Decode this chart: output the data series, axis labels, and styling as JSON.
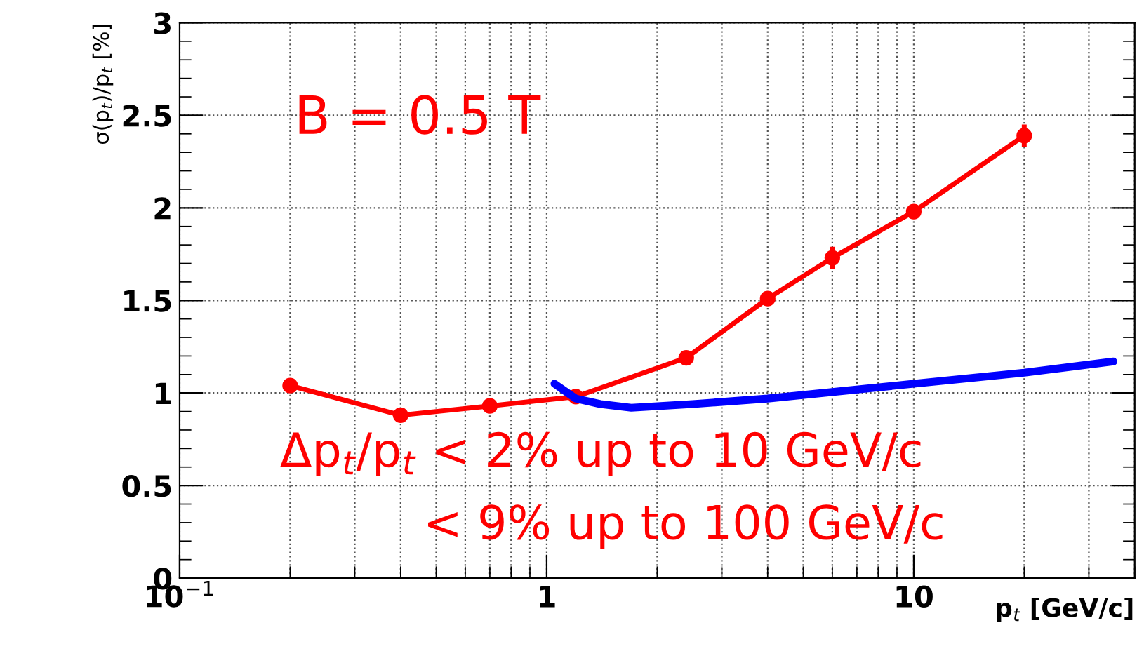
{
  "chart_data": {
    "type": "line",
    "xlabel": "p$_{t}$ [GeV/c]",
    "ylabel": "σ(p$_{t}$)/p$_{t}$ [%]",
    "log": "x",
    "xlim": [
      0.1,
      40
    ],
    "xticks": [
      {
        "value": 0.1,
        "label": "10$^{−1}$"
      },
      1,
      10
    ],
    "ylim": [
      0,
      3
    ],
    "yticks": [
      0,
      0.5,
      1,
      1.5,
      2,
      2.5,
      3
    ],
    "grid": true,
    "series": [
      {
        "color": "#ff0000",
        "marker": "circle",
        "x": [
          0.2,
          0.4,
          0.7,
          1.2,
          2.4,
          4,
          6,
          10,
          20
        ],
        "values": [
          1.04,
          0.88,
          0.93,
          0.98,
          1.19,
          1.51,
          1.73,
          1.98,
          2.39
        ],
        "errors": [
          null,
          null,
          null,
          null,
          null,
          null,
          0.06,
          0.04,
          0.06
        ]
      },
      {
        "color": "#0000ff",
        "marker": "none",
        "x": [
          1.05,
          1.2,
          1.4,
          1.7,
          2.5,
          4,
          10,
          20,
          35
        ],
        "values": [
          1.05,
          0.97,
          0.94,
          0.92,
          0.94,
          0.97,
          1.05,
          1.11,
          1.17
        ]
      }
    ],
    "annotations": [
      "B = 0.5 T",
      "Δp$_{t}$/p$_{t}$ < 2% up to 10 GeV/c",
      "< 9% up to 100 GeV/c"
    ]
  }
}
